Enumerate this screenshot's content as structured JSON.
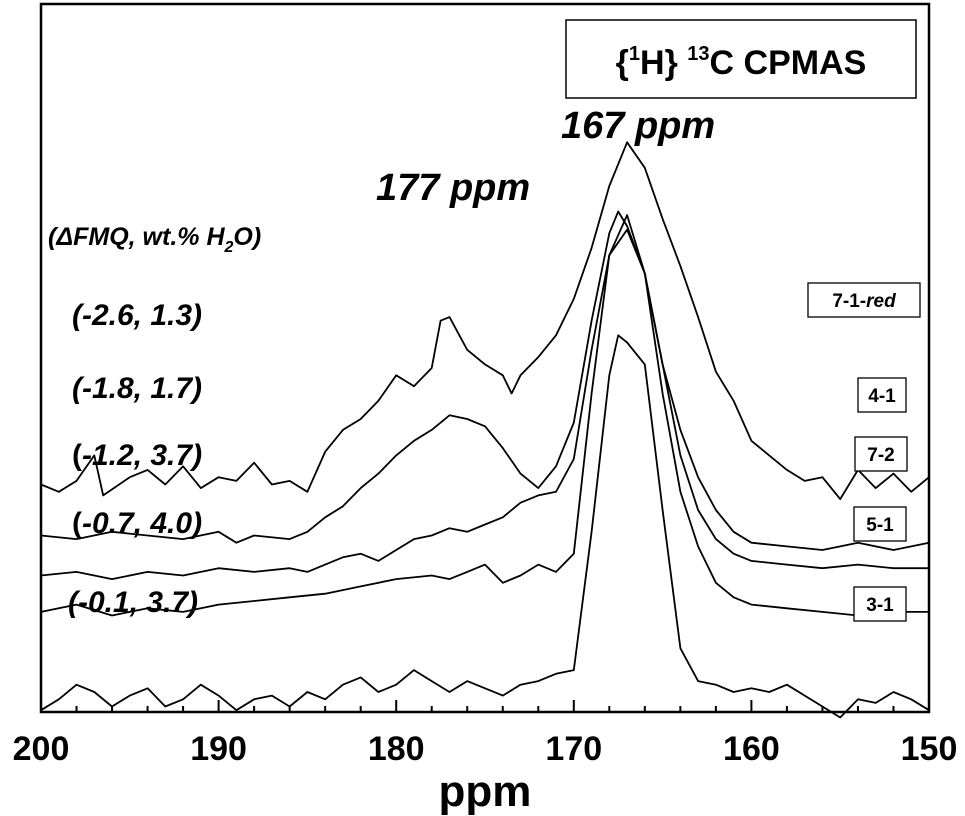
{
  "chart_data": {
    "type": "line",
    "title_parts": {
      "open": "{",
      "sup1": "1",
      "mid": "H} ",
      "sup2": "13",
      "tail": "C CPMAS"
    },
    "xlabel": "ppm",
    "x_reversed": true,
    "xlim": [
      200,
      150
    ],
    "xticks": [
      "200",
      "190",
      "180",
      "170",
      "160",
      "150"
    ],
    "grid": false,
    "peak_labels": [
      {
        "text": "167 ppm",
        "ppm": 167
      },
      {
        "text": "177 ppm",
        "ppm": 177
      }
    ],
    "condition_header": {
      "pre": "(",
      "delta": "Δ",
      "main": "FMQ, wt.% H",
      "sub": "2",
      "post": "O)"
    },
    "series": [
      {
        "name": "7-1-red",
        "name_main": "7-1-",
        "name_italic": "red",
        "condition": "(-2.6, 1.3)",
        "baseline": 0.245,
        "points": [
          [
            200,
            0.25
          ],
          [
            199,
            0.23
          ],
          [
            198,
            0.26
          ],
          [
            197,
            0.33
          ],
          [
            196.5,
            0.22
          ],
          [
            195,
            0.27
          ],
          [
            194,
            0.29
          ],
          [
            193,
            0.25
          ],
          [
            192,
            0.3
          ],
          [
            191,
            0.24
          ],
          [
            190,
            0.27
          ],
          [
            189,
            0.26
          ],
          [
            188,
            0.31
          ],
          [
            187,
            0.25
          ],
          [
            186,
            0.26
          ],
          [
            185,
            0.23
          ],
          [
            184,
            0.34
          ],
          [
            183,
            0.4
          ],
          [
            182,
            0.43
          ],
          [
            181,
            0.48
          ],
          [
            180,
            0.55
          ],
          [
            179,
            0.52
          ],
          [
            178,
            0.57
          ],
          [
            177.5,
            0.7
          ],
          [
            177,
            0.71
          ],
          [
            176,
            0.62
          ],
          [
            175,
            0.58
          ],
          [
            174,
            0.55
          ],
          [
            173.5,
            0.5
          ],
          [
            173,
            0.55
          ],
          [
            172,
            0.6
          ],
          [
            171,
            0.66
          ],
          [
            170,
            0.76
          ],
          [
            169,
            0.9
          ],
          [
            168,
            1.07
          ],
          [
            167,
            1.19
          ],
          [
            166,
            1.12
          ],
          [
            165,
            0.98
          ],
          [
            164,
            0.85
          ],
          [
            163,
            0.71
          ],
          [
            162,
            0.56
          ],
          [
            161,
            0.48
          ],
          [
            160,
            0.37
          ],
          [
            159,
            0.33
          ],
          [
            158,
            0.29
          ],
          [
            157,
            0.26
          ],
          [
            156,
            0.27
          ],
          [
            155,
            0.21
          ],
          [
            154,
            0.29
          ],
          [
            153,
            0.24
          ],
          [
            152,
            0.28
          ],
          [
            151,
            0.23
          ],
          [
            150,
            0.27
          ]
        ]
      },
      {
        "name": "4-1",
        "condition": "(-1.8, 1.7)",
        "baseline": 0.11,
        "points": [
          [
            200,
            0.11
          ],
          [
            198,
            0.1
          ],
          [
            196,
            0.12
          ],
          [
            194,
            0.11
          ],
          [
            192,
            0.1
          ],
          [
            190,
            0.12
          ],
          [
            189,
            0.09
          ],
          [
            188,
            0.11
          ],
          [
            186,
            0.1
          ],
          [
            185,
            0.12
          ],
          [
            184,
            0.16
          ],
          [
            183,
            0.19
          ],
          [
            182,
            0.24
          ],
          [
            181,
            0.28
          ],
          [
            180,
            0.33
          ],
          [
            179,
            0.37
          ],
          [
            178,
            0.4
          ],
          [
            177,
            0.44
          ],
          [
            176,
            0.43
          ],
          [
            175,
            0.41
          ],
          [
            174,
            0.35
          ],
          [
            173,
            0.28
          ],
          [
            172,
            0.24
          ],
          [
            171,
            0.3
          ],
          [
            170,
            0.42
          ],
          [
            169,
            0.7
          ],
          [
            168,
            0.94
          ],
          [
            167.5,
            1.0
          ],
          [
            167,
            0.96
          ],
          [
            166,
            0.83
          ],
          [
            165,
            0.58
          ],
          [
            164,
            0.4
          ],
          [
            163,
            0.27
          ],
          [
            162,
            0.18
          ],
          [
            161,
            0.12
          ],
          [
            160,
            0.09
          ],
          [
            158,
            0.08
          ],
          [
            156,
            0.07
          ],
          [
            154,
            0.09
          ],
          [
            152,
            0.07
          ],
          [
            150,
            0.09
          ]
        ]
      },
      {
        "name": "7-2",
        "condition_pre": "(",
        "condition_main": "-1.2, 3.7)",
        "baseline": 0.0,
        "points": [
          [
            200,
            0.0
          ],
          [
            198,
            0.01
          ],
          [
            196,
            -0.01
          ],
          [
            194,
            0.01
          ],
          [
            192,
            0.0
          ],
          [
            190,
            0.02
          ],
          [
            188,
            0.01
          ],
          [
            186,
            0.02
          ],
          [
            185,
            0.01
          ],
          [
            184,
            0.03
          ],
          [
            183,
            0.05
          ],
          [
            182,
            0.06
          ],
          [
            181,
            0.04
          ],
          [
            180,
            0.07
          ],
          [
            179,
            0.1
          ],
          [
            178,
            0.11
          ],
          [
            177,
            0.13
          ],
          [
            176,
            0.12
          ],
          [
            175,
            0.14
          ],
          [
            174,
            0.16
          ],
          [
            173,
            0.2
          ],
          [
            172,
            0.22
          ],
          [
            171,
            0.23
          ],
          [
            170,
            0.32
          ],
          [
            169,
            0.62
          ],
          [
            168,
            0.88
          ],
          [
            167,
            0.95
          ],
          [
            166,
            0.83
          ],
          [
            165,
            0.58
          ],
          [
            164,
            0.33
          ],
          [
            163,
            0.18
          ],
          [
            162,
            0.1
          ],
          [
            161,
            0.06
          ],
          [
            160,
            0.04
          ],
          [
            158,
            0.03
          ],
          [
            156,
            0.02
          ],
          [
            154,
            0.03
          ],
          [
            152,
            0.02
          ],
          [
            150,
            0.02
          ]
        ]
      },
      {
        "name": "5-1",
        "condition_pre": "(",
        "condition_main": "-0.7, 4.0)",
        "baseline": -0.1,
        "points": [
          [
            200,
            -0.1
          ],
          [
            198,
            -0.08
          ],
          [
            196,
            -0.11
          ],
          [
            194,
            -0.09
          ],
          [
            192,
            -0.1
          ],
          [
            190,
            -0.08
          ],
          [
            188,
            -0.07
          ],
          [
            186,
            -0.06
          ],
          [
            184,
            -0.05
          ],
          [
            182,
            -0.03
          ],
          [
            180,
            -0.01
          ],
          [
            178,
            0.0
          ],
          [
            177,
            -0.01
          ],
          [
            176,
            0.01
          ],
          [
            175,
            0.03
          ],
          [
            174,
            -0.02
          ],
          [
            173,
            0.0
          ],
          [
            172,
            0.03
          ],
          [
            171,
            0.01
          ],
          [
            170,
            0.06
          ],
          [
            169,
            0.5
          ],
          [
            168,
            0.88
          ],
          [
            167,
            0.99
          ],
          [
            166,
            0.83
          ],
          [
            165,
            0.5
          ],
          [
            164,
            0.23
          ],
          [
            163,
            0.08
          ],
          [
            162,
            -0.02
          ],
          [
            161,
            -0.06
          ],
          [
            160,
            -0.08
          ],
          [
            158,
            -0.09
          ],
          [
            156,
            -0.1
          ],
          [
            154,
            -0.11
          ],
          [
            152,
            -0.1
          ],
          [
            150,
            -0.1
          ]
        ]
      },
      {
        "name": "3-1",
        "condition": "(-0.1, 3.7)",
        "baseline": -0.36,
        "points": [
          [
            200,
            -0.37
          ],
          [
            199,
            -0.34
          ],
          [
            198,
            -0.3
          ],
          [
            197,
            -0.32
          ],
          [
            196,
            -0.36
          ],
          [
            195,
            -0.33
          ],
          [
            194,
            -0.31
          ],
          [
            193,
            -0.36
          ],
          [
            192,
            -0.34
          ],
          [
            191,
            -0.3
          ],
          [
            190,
            -0.33
          ],
          [
            189,
            -0.37
          ],
          [
            188,
            -0.34
          ],
          [
            187,
            -0.33
          ],
          [
            186,
            -0.36
          ],
          [
            185,
            -0.32
          ],
          [
            184,
            -0.34
          ],
          [
            183,
            -0.3
          ],
          [
            182,
            -0.28
          ],
          [
            181,
            -0.32
          ],
          [
            180,
            -0.3
          ],
          [
            179,
            -0.26
          ],
          [
            178,
            -0.29
          ],
          [
            177,
            -0.32
          ],
          [
            176,
            -0.29
          ],
          [
            175,
            -0.31
          ],
          [
            174,
            -0.33
          ],
          [
            173,
            -0.3
          ],
          [
            172,
            -0.29
          ],
          [
            171,
            -0.27
          ],
          [
            170,
            -0.26
          ],
          [
            169,
            0.12
          ],
          [
            168,
            0.55
          ],
          [
            167.5,
            0.66
          ],
          [
            167,
            0.64
          ],
          [
            166,
            0.58
          ],
          [
            165,
            0.18
          ],
          [
            164,
            -0.2
          ],
          [
            163,
            -0.29
          ],
          [
            162,
            -0.3
          ],
          [
            161,
            -0.32
          ],
          [
            160,
            -0.31
          ],
          [
            159,
            -0.32
          ],
          [
            158,
            -0.3
          ],
          [
            157,
            -0.33
          ],
          [
            156,
            -0.36
          ],
          [
            155,
            -0.39
          ],
          [
            154,
            -0.34
          ],
          [
            153,
            -0.35
          ],
          [
            152,
            -0.32
          ],
          [
            151,
            -0.34
          ],
          [
            150,
            -0.37
          ]
        ]
      }
    ]
  }
}
